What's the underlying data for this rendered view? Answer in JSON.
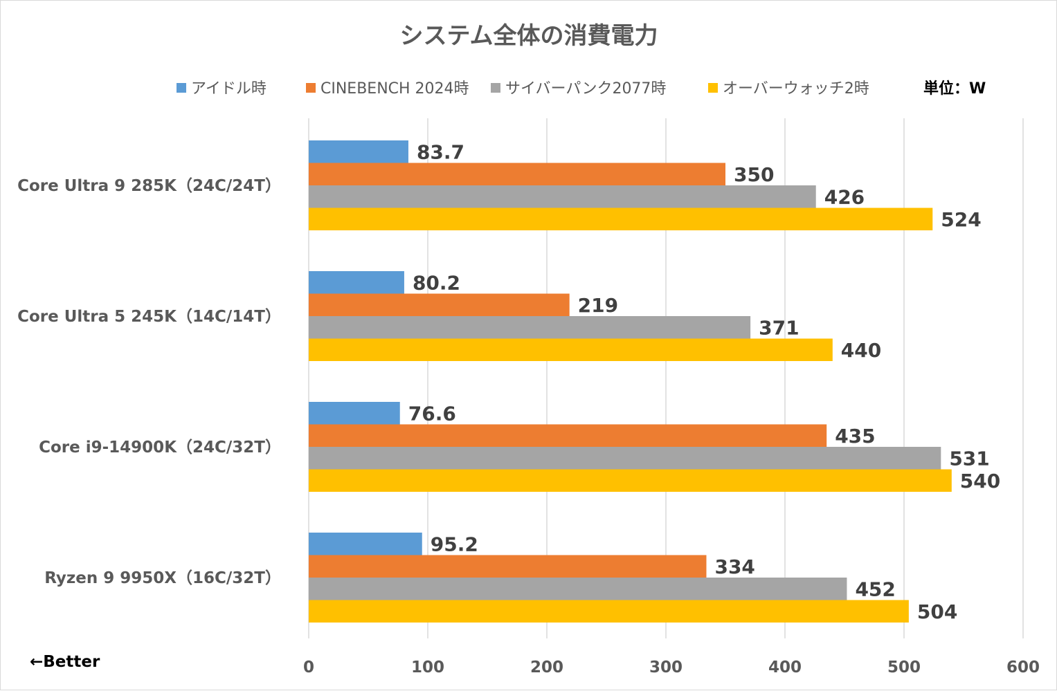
{
  "chart_data": {
    "type": "bar",
    "orientation": "horizontal",
    "title": "システム全体の消費電力",
    "unit_label": "単位：W",
    "note": "←Better",
    "categories": [
      "Core Ultra 9 285K（24C/24T）",
      "Core Ultra 5 245K（14C/14T）",
      "Core i9-14900K（24C/32T）",
      "Ryzen 9 9950X（16C/32T）"
    ],
    "series": [
      {
        "name": "アイドル時",
        "color": "#5b9bd5",
        "values": [
          83.7,
          80.2,
          76.6,
          95.2
        ]
      },
      {
        "name": "CINEBENCH 2024時",
        "color": "#ed7d31",
        "values": [
          350,
          219,
          435,
          334
        ]
      },
      {
        "name": "サイバーパンク2077時",
        "color": "#a5a5a5",
        "values": [
          426,
          371,
          531,
          452
        ]
      },
      {
        "name": "オーバーウォッチ2時",
        "color": "#ffc000",
        "values": [
          524,
          440,
          540,
          504
        ]
      }
    ],
    "xlim": [
      0,
      600
    ],
    "xticks": [
      0,
      100,
      200,
      300,
      400,
      500,
      600
    ],
    "grid": true,
    "legend": "top"
  }
}
